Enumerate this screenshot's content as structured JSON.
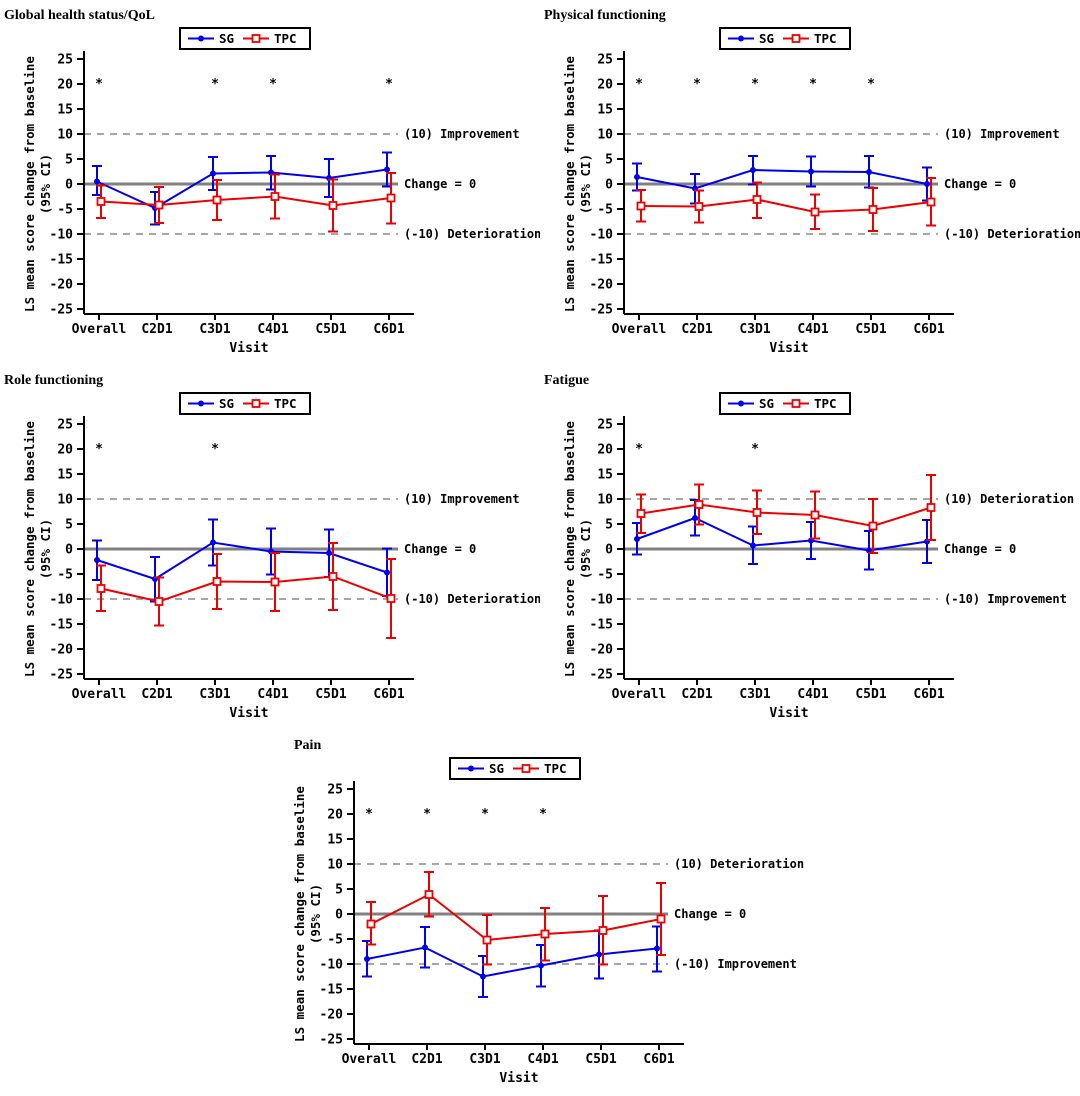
{
  "axes": {
    "x_label": "Visit",
    "y_label_line1": "LS mean score change from baseline",
    "y_label_line2": "(95% CI)",
    "y_ticks": [
      25,
      20,
      15,
      10,
      5,
      0,
      -5,
      -10,
      -15,
      -20,
      -25
    ],
    "y_min": -25,
    "y_max": 25,
    "categories": [
      "Overall",
      "C2D1",
      "C3D1",
      "C4D1",
      "C5D1",
      "C6D1"
    ],
    "axis_color": "#000000",
    "zero_line_color": "#808080",
    "dashed_line_color": "#888888"
  },
  "significance_symbol": "*",
  "significance_y": 20,
  "chart_data": [
    {
      "title": "Global health status/QoL",
      "type": "line",
      "categories": [
        "Overall",
        "C2D1",
        "C3D1",
        "C4D1",
        "C5D1",
        "C6D1"
      ],
      "upper_ref": {
        "y": 10,
        "label": "(10) Improvement"
      },
      "zero_ref": {
        "y": 0,
        "label": "Change = 0"
      },
      "lower_ref": {
        "y": -10,
        "label": "(-10) Deterioration"
      },
      "significant_visits": [
        "Overall",
        "C3D1",
        "C4D1",
        "C6D1"
      ],
      "series": [
        {
          "name": "SG",
          "color": "#0000EE",
          "marker": "filled-circle",
          "mean": [
            0.5,
            -4.8,
            2.1,
            2.3,
            1.2,
            2.9
          ],
          "ci_lower": [
            -2.2,
            -8.1,
            -1.2,
            -1.1,
            -2.6,
            -0.5
          ],
          "ci_upper": [
            3.6,
            -1.6,
            5.4,
            5.6,
            5.0,
            6.3
          ]
        },
        {
          "name": "TPC",
          "color": "#EE0000",
          "marker": "open-square",
          "mean": [
            -3.5,
            -4.2,
            -3.2,
            -2.5,
            -4.3,
            -2.8
          ],
          "ci_lower": [
            -6.8,
            -7.8,
            -7.2,
            -6.9,
            -9.5,
            -7.9
          ],
          "ci_upper": [
            -0.3,
            -0.6,
            0.8,
            1.9,
            0.9,
            2.2
          ]
        }
      ]
    },
    {
      "title": "Physical functioning",
      "type": "line",
      "categories": [
        "Overall",
        "C2D1",
        "C3D1",
        "C4D1",
        "C5D1",
        "C6D1"
      ],
      "upper_ref": {
        "y": 10,
        "label": "(10) Improvement"
      },
      "zero_ref": {
        "y": 0,
        "label": "Change = 0"
      },
      "lower_ref": {
        "y": -10,
        "label": "(-10) Deterioration"
      },
      "significant_visits": [
        "Overall",
        "C2D1",
        "C3D1",
        "C4D1",
        "C5D1"
      ],
      "series": [
        {
          "name": "SG",
          "color": "#0000EE",
          "marker": "filled-circle",
          "mean": [
            1.4,
            -0.9,
            2.8,
            2.5,
            2.4,
            0.0
          ],
          "ci_lower": [
            -1.3,
            -3.9,
            -0.1,
            -0.5,
            -0.7,
            -3.3
          ],
          "ci_upper": [
            4.1,
            2.0,
            5.6,
            5.5,
            5.6,
            3.3
          ]
        },
        {
          "name": "TPC",
          "color": "#EE0000",
          "marker": "open-square",
          "mean": [
            -4.4,
            -4.5,
            -3.1,
            -5.6,
            -5.1,
            -3.6
          ],
          "ci_lower": [
            -7.5,
            -7.7,
            -6.8,
            -9.0,
            -9.4,
            -8.3
          ],
          "ci_upper": [
            -1.2,
            -1.3,
            0.3,
            -2.1,
            -0.8,
            1.2
          ]
        }
      ]
    },
    {
      "title": "Role functioning",
      "type": "line",
      "categories": [
        "Overall",
        "C2D1",
        "C3D1",
        "C4D1",
        "C5D1",
        "C6D1"
      ],
      "upper_ref": {
        "y": 10,
        "label": "(10) Improvement"
      },
      "zero_ref": {
        "y": 0,
        "label": "Change = 0"
      },
      "lower_ref": {
        "y": -10,
        "label": "(-10) Deterioration"
      },
      "significant_visits": [
        "Overall",
        "C3D1"
      ],
      "series": [
        {
          "name": "SG",
          "color": "#0000EE",
          "marker": "filled-circle",
          "mean": [
            -2.2,
            -6.0,
            1.3,
            -0.5,
            -0.8,
            -4.7
          ],
          "ci_lower": [
            -6.2,
            -10.5,
            -3.3,
            -5.1,
            -5.6,
            -9.4
          ],
          "ci_upper": [
            1.7,
            -1.6,
            5.9,
            4.1,
            3.9,
            0.1
          ]
        },
        {
          "name": "TPC",
          "color": "#EE0000",
          "marker": "open-square",
          "mean": [
            -7.9,
            -10.5,
            -6.5,
            -6.6,
            -5.5,
            -9.9
          ],
          "ci_lower": [
            -12.4,
            -15.3,
            -12.0,
            -12.4,
            -12.2,
            -17.8
          ],
          "ci_upper": [
            -3.3,
            -5.7,
            -1.0,
            -0.8,
            1.2,
            -2.0
          ]
        }
      ]
    },
    {
      "title": "Fatigue",
      "type": "line",
      "categories": [
        "Overall",
        "C2D1",
        "C3D1",
        "C4D1",
        "C5D1",
        "C6D1"
      ],
      "upper_ref": {
        "y": 10,
        "label": "(10) Deterioration"
      },
      "zero_ref": {
        "y": 0,
        "label": "Change = 0"
      },
      "lower_ref": {
        "y": -10,
        "label": "(-10) Improvement"
      },
      "significant_visits": [
        "Overall",
        "C3D1"
      ],
      "series": [
        {
          "name": "SG",
          "color": "#0000EE",
          "marker": "filled-circle",
          "mean": [
            2.0,
            6.2,
            0.7,
            1.7,
            -0.3,
            1.5
          ],
          "ci_lower": [
            -1.1,
            2.7,
            -3.0,
            -2.0,
            -4.1,
            -2.8
          ],
          "ci_upper": [
            5.2,
            9.8,
            4.5,
            5.4,
            3.6,
            5.8
          ]
        },
        {
          "name": "TPC",
          "color": "#EE0000",
          "marker": "open-square",
          "mean": [
            7.1,
            8.9,
            7.3,
            6.8,
            4.6,
            8.3
          ],
          "ci_lower": [
            3.2,
            4.9,
            3.0,
            2.1,
            -0.8,
            1.8
          ],
          "ci_upper": [
            10.9,
            12.9,
            11.7,
            11.5,
            10.0,
            14.8
          ]
        }
      ]
    },
    {
      "title": "Pain",
      "type": "line",
      "categories": [
        "Overall",
        "C2D1",
        "C3D1",
        "C4D1",
        "C5D1",
        "C6D1"
      ],
      "upper_ref": {
        "y": 10,
        "label": "(10) Deterioration"
      },
      "zero_ref": {
        "y": 0,
        "label": "Change = 0"
      },
      "lower_ref": {
        "y": -10,
        "label": "(-10) Improvement"
      },
      "significant_visits": [
        "Overall",
        "C2D1",
        "C3D1",
        "C4D1"
      ],
      "series": [
        {
          "name": "SG",
          "color": "#0000EE",
          "marker": "filled-circle",
          "mean": [
            -9.0,
            -6.7,
            -12.5,
            -10.3,
            -8.1,
            -6.9
          ],
          "ci_lower": [
            -12.5,
            -10.7,
            -16.6,
            -14.5,
            -12.9,
            -11.5
          ],
          "ci_upper": [
            -5.4,
            -2.6,
            -8.4,
            -6.2,
            -3.3,
            -2.5
          ]
        },
        {
          "name": "TPC",
          "color": "#EE0000",
          "marker": "open-square",
          "mean": [
            -2.0,
            3.9,
            -5.2,
            -4.0,
            -3.3,
            -1.0
          ],
          "ci_lower": [
            -6.1,
            -0.5,
            -10.1,
            -9.3,
            -10.1,
            -8.2
          ],
          "ci_upper": [
            2.4,
            8.4,
            -0.2,
            1.2,
            3.6,
            6.2
          ]
        }
      ]
    }
  ]
}
